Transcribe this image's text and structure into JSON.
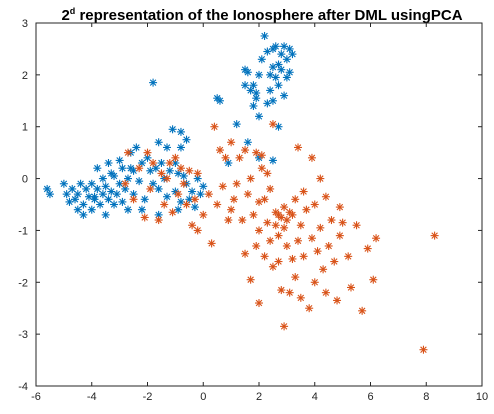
{
  "chart_data": {
    "type": "scatter",
    "title": {
      "prefix": "2",
      "superscript": "d",
      "rest": " representation of the Ionosphere after DML usingPCA"
    },
    "xlabel": "",
    "ylabel": "",
    "xlim": [
      -6,
      10
    ],
    "ylim": [
      -4,
      3
    ],
    "xticks": [
      -6,
      -4,
      -2,
      0,
      2,
      4,
      6,
      8,
      10
    ],
    "yticks": [
      -4,
      -3,
      -2,
      -1,
      0,
      1,
      2,
      3
    ],
    "grid": false,
    "legend": "none",
    "marker": "asterisk",
    "series": [
      {
        "color": "#0072BD",
        "points": [
          [
            -5.6,
            -0.2
          ],
          [
            -5.5,
            -0.3
          ],
          [
            -5.0,
            -0.1
          ],
          [
            -4.9,
            -0.3
          ],
          [
            -4.8,
            -0.45
          ],
          [
            -4.7,
            -0.2
          ],
          [
            -4.6,
            -0.4
          ],
          [
            -4.5,
            -0.6
          ],
          [
            -4.5,
            -0.3
          ],
          [
            -4.4,
            -0.1
          ],
          [
            -4.3,
            -0.5
          ],
          [
            -4.2,
            -0.2
          ],
          [
            -4.1,
            -0.35
          ],
          [
            -4.0,
            -0.6
          ],
          [
            -4.0,
            -0.1
          ],
          [
            -3.9,
            -0.4
          ],
          [
            -3.8,
            -0.2
          ],
          [
            -3.8,
            0.2
          ],
          [
            -3.7,
            -0.5
          ],
          [
            -3.6,
            0.0
          ],
          [
            -3.6,
            -0.3
          ],
          [
            -3.5,
            -0.7
          ],
          [
            -3.5,
            -0.15
          ],
          [
            -3.4,
            0.3
          ],
          [
            -3.4,
            -0.4
          ],
          [
            -3.3,
            0.1
          ],
          [
            -3.3,
            -0.25
          ],
          [
            -3.2,
            -0.5
          ],
          [
            -3.2,
            0.05
          ],
          [
            -3.1,
            -0.3
          ],
          [
            -3.0,
            0.35
          ],
          [
            -3.0,
            -0.1
          ],
          [
            -2.9,
            -0.45
          ],
          [
            -2.9,
            0.2
          ],
          [
            -2.8,
            -0.2
          ],
          [
            -2.7,
            0.0
          ],
          [
            -2.7,
            -0.6
          ],
          [
            -2.6,
            0.5
          ],
          [
            -2.5,
            0.15
          ],
          [
            -2.5,
            -0.3
          ],
          [
            -2.4,
            0.6
          ],
          [
            -2.3,
            -0.05
          ],
          [
            -2.2,
            0.3
          ],
          [
            -2.1,
            -0.4
          ],
          [
            -2.0,
            0.4
          ],
          [
            -1.9,
            0.15
          ],
          [
            -1.8,
            -0.1
          ],
          [
            -1.7,
            0.2
          ],
          [
            -1.6,
            0.7
          ],
          [
            -1.6,
            -0.2
          ],
          [
            -1.5,
            0.3
          ],
          [
            -1.4,
            0.0
          ],
          [
            -1.3,
            0.6
          ],
          [
            -1.3,
            -0.35
          ],
          [
            -1.2,
            0.15
          ],
          [
            -1.1,
            0.95
          ],
          [
            -1.0,
            0.3
          ],
          [
            -1.0,
            -0.25
          ],
          [
            -0.9,
            0.1
          ],
          [
            -0.8,
            0.6
          ],
          [
            -0.8,
            -0.45
          ],
          [
            -0.7,
            0.05
          ],
          [
            -0.6,
            -0.1
          ],
          [
            -0.6,
            0.75
          ],
          [
            -0.5,
            -0.4
          ],
          [
            -0.4,
            -0.25
          ],
          [
            -0.3,
            -0.55
          ],
          [
            -0.2,
            0.0
          ],
          [
            -0.1,
            -0.3
          ],
          [
            0.0,
            -0.15
          ],
          [
            -0.8,
            0.9
          ],
          [
            -1.8,
            1.85
          ],
          [
            -2.6,
            0.2
          ],
          [
            -3.9,
            -0.35
          ],
          [
            -4.3,
            -0.7
          ],
          [
            -2.2,
            -0.6
          ],
          [
            -1.6,
            -0.7
          ],
          [
            -0.9,
            -0.6
          ],
          [
            0.5,
            1.55
          ],
          [
            0.6,
            1.5
          ],
          [
            0.9,
            0.3
          ],
          [
            1.2,
            1.05
          ],
          [
            1.5,
            2.1
          ],
          [
            1.6,
            2.05
          ],
          [
            1.7,
            1.7
          ],
          [
            1.8,
            1.4
          ],
          [
            1.8,
            1.8
          ],
          [
            1.9,
            1.65
          ],
          [
            2.0,
            2.0
          ],
          [
            2.0,
            1.2
          ],
          [
            2.1,
            2.3
          ],
          [
            2.2,
            2.75
          ],
          [
            2.3,
            2.45
          ],
          [
            2.4,
            2.0
          ],
          [
            2.4,
            1.7
          ],
          [
            2.5,
            2.5
          ],
          [
            2.5,
            2.15
          ],
          [
            2.6,
            1.95
          ],
          [
            2.7,
            2.2
          ],
          [
            2.7,
            1.8
          ],
          [
            2.8,
            2.4
          ],
          [
            2.8,
            2.1
          ],
          [
            2.9,
            2.55
          ],
          [
            2.9,
            1.6
          ],
          [
            3.0,
            2.3
          ],
          [
            3.0,
            1.95
          ],
          [
            3.1,
            2.5
          ],
          [
            3.1,
            2.05
          ],
          [
            2.6,
            2.55
          ],
          [
            2.3,
            1.45
          ],
          [
            1.5,
            1.8
          ],
          [
            2.0,
            0.4
          ],
          [
            1.6,
            0.7
          ],
          [
            2.5,
            0.35
          ],
          [
            1.9,
            1.55
          ],
          [
            2.7,
            1.0
          ],
          [
            2.5,
            1.5
          ],
          [
            3.2,
            2.4
          ]
        ]
      },
      {
        "color": "#D95319",
        "points": [
          [
            -2.8,
            -0.1
          ],
          [
            -2.7,
            0.5
          ],
          [
            -2.5,
            -0.4
          ],
          [
            -2.3,
            0.2
          ],
          [
            -2.1,
            -0.75
          ],
          [
            -2.0,
            0.5
          ],
          [
            -1.9,
            -0.2
          ],
          [
            -1.8,
            0.3
          ],
          [
            -1.6,
            -0.8
          ],
          [
            -1.5,
            0.1
          ],
          [
            -1.4,
            -0.5
          ],
          [
            -1.3,
            0.0
          ],
          [
            -1.2,
            0.3
          ],
          [
            -1.1,
            -0.65
          ],
          [
            -1.0,
            0.4
          ],
          [
            -0.9,
            -0.3
          ],
          [
            -0.8,
            0.2
          ],
          [
            -0.7,
            -0.1
          ],
          [
            -0.6,
            -0.5
          ],
          [
            -0.5,
            0.15
          ],
          [
            -0.4,
            -0.9
          ],
          [
            -0.3,
            -0.4
          ],
          [
            -0.2,
            0.1
          ],
          [
            0.0,
            -0.7
          ],
          [
            0.2,
            -0.3
          ],
          [
            0.3,
            -1.25
          ],
          [
            0.5,
            -0.5
          ],
          [
            0.6,
            0.55
          ],
          [
            0.7,
            -0.15
          ],
          [
            0.8,
            0.4
          ],
          [
            0.9,
            -0.8
          ],
          [
            1.0,
            0.7
          ],
          [
            1.1,
            -0.4
          ],
          [
            1.2,
            -0.1
          ],
          [
            1.3,
            0.4
          ],
          [
            1.4,
            -0.8
          ],
          [
            1.5,
            -1.45
          ],
          [
            1.6,
            -0.3
          ],
          [
            1.7,
            0.0
          ],
          [
            1.7,
            -1.95
          ],
          [
            1.8,
            -0.7
          ],
          [
            1.9,
            0.5
          ],
          [
            1.9,
            -1.3
          ],
          [
            2.0,
            -1.0
          ],
          [
            2.0,
            -2.4
          ],
          [
            2.1,
            0.45
          ],
          [
            2.2,
            -0.4
          ],
          [
            2.2,
            -1.5
          ],
          [
            2.3,
            -0.85
          ],
          [
            2.3,
            0.1
          ],
          [
            2.4,
            -1.2
          ],
          [
            2.4,
            -0.2
          ],
          [
            2.5,
            -1.7
          ],
          [
            2.6,
            -0.9
          ],
          [
            2.6,
            -0.65
          ],
          [
            2.7,
            -0.7
          ],
          [
            2.7,
            -1.1
          ],
          [
            2.8,
            -0.75
          ],
          [
            2.8,
            -2.15
          ],
          [
            2.9,
            -0.95
          ],
          [
            2.9,
            -2.85
          ],
          [
            3.0,
            -0.8
          ],
          [
            3.0,
            -1.3
          ],
          [
            3.1,
            -0.65
          ],
          [
            3.1,
            -2.2
          ],
          [
            3.2,
            -1.55
          ],
          [
            3.3,
            -0.4
          ],
          [
            3.3,
            -1.9
          ],
          [
            3.4,
            -1.2
          ],
          [
            3.5,
            -2.3
          ],
          [
            3.5,
            -0.9
          ],
          [
            3.6,
            -1.5
          ],
          [
            3.7,
            -0.6
          ],
          [
            3.8,
            -2.5
          ],
          [
            3.9,
            -1.15
          ],
          [
            4.0,
            -0.5
          ],
          [
            4.0,
            -2.0
          ],
          [
            4.1,
            -1.4
          ],
          [
            4.2,
            -0.95
          ],
          [
            4.3,
            -1.75
          ],
          [
            4.4,
            -2.2
          ],
          [
            4.5,
            -1.3
          ],
          [
            4.6,
            -0.8
          ],
          [
            4.7,
            -1.6
          ],
          [
            4.8,
            -2.35
          ],
          [
            4.9,
            -1.1
          ],
          [
            5.0,
            -0.85
          ],
          [
            5.2,
            -1.5
          ],
          [
            5.3,
            -2.1
          ],
          [
            5.5,
            -0.9
          ],
          [
            5.7,
            -2.55
          ],
          [
            5.9,
            -1.35
          ],
          [
            6.1,
            -1.95
          ],
          [
            6.2,
            -1.15
          ],
          [
            8.3,
            -1.1
          ],
          [
            7.9,
            -3.3
          ],
          [
            2.5,
            1.05
          ],
          [
            3.4,
            0.6
          ],
          [
            4.2,
            0.0
          ],
          [
            3.9,
            0.4
          ],
          [
            0.4,
            1.0
          ],
          [
            2.1,
            0.2
          ],
          [
            1.5,
            0.55
          ],
          [
            4.9,
            -0.55
          ],
          [
            3.6,
            -0.25
          ],
          [
            4.4,
            -0.35
          ],
          [
            2.9,
            -0.55
          ],
          [
            3.2,
            -0.7
          ],
          [
            2.0,
            -0.45
          ],
          [
            1.0,
            -0.6
          ],
          [
            -0.2,
            -1.0
          ],
          [
            2.7,
            -1.6
          ]
        ]
      }
    ]
  }
}
